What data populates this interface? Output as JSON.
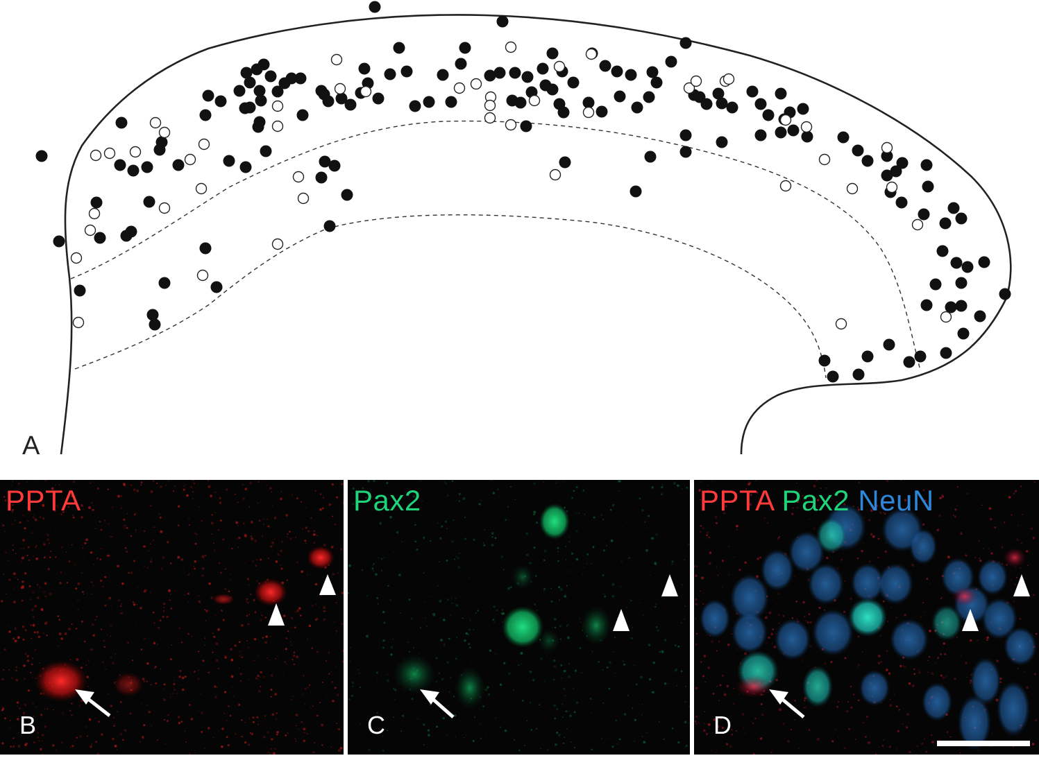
{
  "panels": {
    "a": {
      "letter": "A"
    },
    "b": {
      "letter": "B",
      "label": "PPTA"
    },
    "c": {
      "letter": "C",
      "label": "Pax2"
    },
    "d": {
      "letter": "D",
      "label_1": "PPTA",
      "label_2": "Pax2",
      "label_3": "NeuN"
    }
  },
  "colors": {
    "ppta": "#ff3a3a",
    "pax2": "#1fd37a",
    "neun": "#2f86d8",
    "background": "#050505"
  },
  "marker_legend": {
    "filled": "filled-circle",
    "open": "open-circle",
    "arrow": "arrow-icon",
    "arrowhead": "arrowhead-icon"
  }
}
